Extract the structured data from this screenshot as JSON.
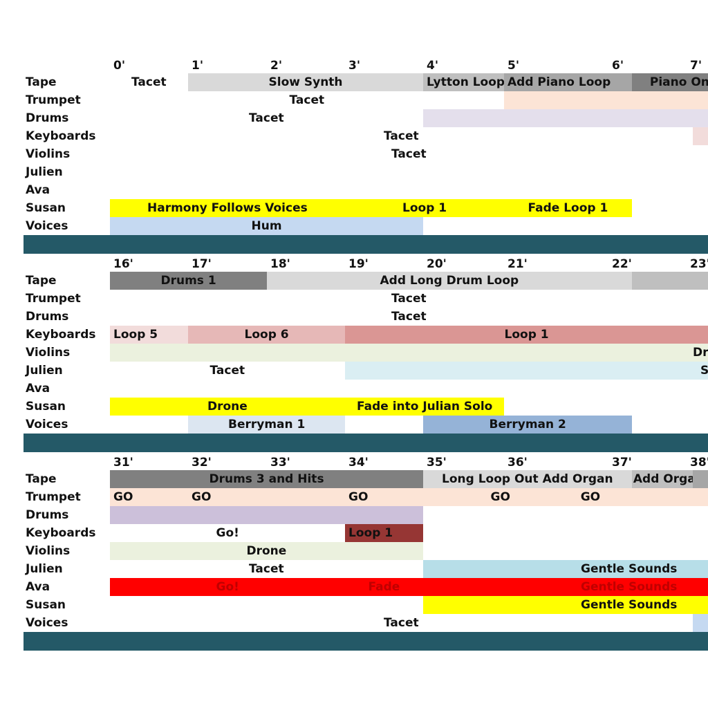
{
  "sections": [
    {
      "times": [
        "0'",
        "1'",
        "2'",
        "3'",
        "4'",
        "5'",
        "6'",
        "7'"
      ],
      "rows": [
        {
          "label": "Tape",
          "cells": [
            {
              "from": 0,
              "to": 1,
              "text": "Tacet",
              "align": "center",
              "color": "#ffffff"
            },
            {
              "from": 1,
              "to": 4,
              "text": "Slow Synth",
              "align": "center",
              "color": "#d9d9d9"
            },
            {
              "from": 4,
              "to": 5,
              "text": "Lytton Loop",
              "align": "left",
              "color": "#bfbfbf"
            },
            {
              "from": 5,
              "to": 6.3,
              "text": "Add Piano Loop",
              "align": "left",
              "color": "#a6a6a6"
            },
            {
              "from": 6.3,
              "to": 8,
              "text": "Piano On",
              "align": "right",
              "color": "#808080"
            }
          ]
        },
        {
          "label": "Trumpet",
          "cells": [
            {
              "from": 0,
              "to": 5,
              "text": "Tacet",
              "align": "center",
              "color": "#ffffff"
            },
            {
              "from": 5,
              "to": 8,
              "text": "",
              "align": "center",
              "color": "#fce4d6"
            }
          ]
        },
        {
          "label": "Drums",
          "cells": [
            {
              "from": 0,
              "to": 4,
              "text": "Tacet",
              "align": "center",
              "color": "#ffffff"
            },
            {
              "from": 4,
              "to": 8,
              "text": "",
              "align": "center",
              "color": "#e4dfec"
            }
          ]
        },
        {
          "label": "Keyboards",
          "cells": [
            {
              "from": 0,
              "to": 7.3,
              "text": "Tacet",
              "align": "center",
              "color": "#ffffff"
            },
            {
              "from": 7.3,
              "to": 8,
              "text": "",
              "align": "center",
              "color": "#f2dcdb"
            }
          ]
        },
        {
          "label": "Violins",
          "cells": [
            {
              "from": 0,
              "to": 8,
              "text": "Tacet",
              "align": "center",
              "color": "#ffffff"
            }
          ]
        },
        {
          "label": "Julien",
          "cells": []
        },
        {
          "label": "Ava",
          "cells": []
        },
        {
          "label": "Susan",
          "cells": [
            {
              "from": 0,
              "to": 3,
              "text": "Harmony Follows Voices",
              "align": "center",
              "color": "#ffff00"
            },
            {
              "from": 3,
              "to": 5,
              "text": "Loop 1",
              "align": "center",
              "color": "#ffff00"
            },
            {
              "from": 5,
              "to": 6.3,
              "text": "Fade Loop 1",
              "align": "center",
              "color": "#ffff00"
            }
          ]
        },
        {
          "label": "Voices",
          "cells": [
            {
              "from": 0,
              "to": 4,
              "text": "Hum",
              "align": "center",
              "color": "#c5d9f1"
            }
          ]
        }
      ]
    },
    {
      "times": [
        "16'",
        "17'",
        "18'",
        "19'",
        "20'",
        "21'",
        "22'",
        "23'"
      ],
      "rows": [
        {
          "label": "Tape",
          "cells": [
            {
              "from": 0,
              "to": 2,
              "text": "Drums 1",
              "align": "center",
              "color": "#808080"
            },
            {
              "from": 2,
              "to": 6.3,
              "text": "Add Long Drum Loop",
              "align": "center",
              "color": "#d9d9d9"
            },
            {
              "from": 6.3,
              "to": 8,
              "text": "",
              "align": "center",
              "color": "#bfbfbf"
            }
          ]
        },
        {
          "label": "Trumpet",
          "cells": [
            {
              "from": 0,
              "to": 8,
              "text": "Tacet",
              "align": "center",
              "color": "#ffffff"
            }
          ]
        },
        {
          "label": "Drums",
          "cells": [
            {
              "from": 0,
              "to": 8,
              "text": "Tacet",
              "align": "center",
              "color": "#ffffff"
            }
          ]
        },
        {
          "label": "Keyboards",
          "cells": [
            {
              "from": 0,
              "to": 1,
              "text": "Loop 5",
              "align": "left",
              "color": "#f2dcdb"
            },
            {
              "from": 1,
              "to": 3,
              "text": "Loop 6",
              "align": "center",
              "color": "#e6b8b7"
            },
            {
              "from": 3,
              "to": 8,
              "text": "Loop 1",
              "align": "center",
              "color": "#da9694"
            }
          ]
        },
        {
          "label": "Violins",
          "cells": [
            {
              "from": 0,
              "to": 8,
              "text": "Dr",
              "align": "right",
              "color": "#ebf1de"
            }
          ]
        },
        {
          "label": "Julien",
          "cells": [
            {
              "from": 0,
              "to": 3,
              "text": "Tacet",
              "align": "center",
              "color": "#ffffff"
            },
            {
              "from": 3,
              "to": 8,
              "text": "S",
              "align": "right",
              "color": "#daeef3"
            }
          ]
        },
        {
          "label": "Ava",
          "cells": []
        },
        {
          "label": "Susan",
          "cells": [
            {
              "from": 0,
              "to": 3,
              "text": "Drone",
              "align": "center",
              "color": "#ffff00"
            },
            {
              "from": 3,
              "to": 5,
              "text": "Fade into Julian Solo",
              "align": "center",
              "color": "#ffff00"
            }
          ]
        },
        {
          "label": "Voices",
          "cells": [
            {
              "from": 1,
              "to": 3,
              "text": "Berryman 1",
              "align": "center",
              "color": "#dce6f1"
            },
            {
              "from": 4,
              "to": 6.3,
              "text": "Berryman 2",
              "align": "center",
              "color": "#95b3d7"
            }
          ]
        }
      ]
    },
    {
      "times": [
        "31'",
        "32'",
        "33'",
        "34'",
        "35'",
        "36'",
        "37'",
        "38'"
      ],
      "rows": [
        {
          "label": "Tape",
          "cells": [
            {
              "from": 0,
              "to": 4,
              "text": "Drums 3 and Hits",
              "align": "center",
              "color": "#808080"
            },
            {
              "from": 4,
              "to": 6.3,
              "text": "Long Loop Out Add Organ",
              "align": "center",
              "color": "#d9d9d9"
            },
            {
              "from": 6.3,
              "to": 7.3,
              "text": "Add Organs",
              "align": "center",
              "color": "#bfbfbf"
            },
            {
              "from": 7.3,
              "to": 8,
              "text": "",
              "align": "center",
              "color": "#a6a6a6"
            }
          ]
        },
        {
          "label": "Trumpet",
          "cells": [
            {
              "from": 0,
              "to": 1,
              "text": "GO",
              "align": "left",
              "color": "#fce4d6"
            },
            {
              "from": 1,
              "to": 3,
              "text": "GO",
              "align": "left",
              "color": "#fce4d6"
            },
            {
              "from": 3,
              "to": 4,
              "text": "GO",
              "align": "left",
              "color": "#fce4d6"
            },
            {
              "from": 4,
              "to": 5.7,
              "text": "GO",
              "align": "center",
              "color": "#fce4d6"
            },
            {
              "from": 5.7,
              "to": 8,
              "text": "GO",
              "align": "left",
              "color": "#fce4d6"
            }
          ]
        },
        {
          "label": "Drums",
          "cells": [
            {
              "from": 0,
              "to": 4,
              "text": "",
              "align": "center",
              "color": "#ccc0da"
            }
          ]
        },
        {
          "label": "Keyboards",
          "cells": [
            {
              "from": 0,
              "to": 3,
              "text": "Go!",
              "align": "center",
              "color": "#ffffff"
            },
            {
              "from": 3,
              "to": 4,
              "text": "Loop 1",
              "align": "left",
              "color": "#963634"
            }
          ]
        },
        {
          "label": "Violins",
          "cells": [
            {
              "from": 0,
              "to": 4,
              "text": "Drone",
              "align": "center",
              "color": "#ebf1de"
            }
          ]
        },
        {
          "label": "Julien",
          "cells": [
            {
              "from": 0,
              "to": 4,
              "text": "Tacet",
              "align": "center",
              "color": "#ffffff"
            },
            {
              "from": 4,
              "to": 8,
              "text": "Gentle Sounds",
              "align": "right",
              "color": "#b7dee8"
            }
          ]
        },
        {
          "label": "Ava",
          "cells": [
            {
              "from": 0,
              "to": 3,
              "text": "Go!",
              "align": "center",
              "color": "#ff0000",
              "text_color": "#c00000"
            },
            {
              "from": 3,
              "to": 4,
              "text": "Fade",
              "align": "center",
              "color": "#ff0000",
              "text_color": "#c00000"
            },
            {
              "from": 4,
              "to": 8,
              "text": "Gentle Sounds",
              "align": "right",
              "color": "#ff0000",
              "text_color": "#c00000"
            }
          ]
        },
        {
          "label": "Susan",
          "cells": [
            {
              "from": 4,
              "to": 8,
              "text": "Gentle Sounds",
              "align": "right",
              "color": "#ffff00"
            }
          ]
        },
        {
          "label": "Voices",
          "cells": [
            {
              "from": 0,
              "to": 7.3,
              "text": "Tacet",
              "align": "center",
              "color": "#ffffff"
            },
            {
              "from": 7.3,
              "to": 8,
              "text": "",
              "align": "center",
              "color": "#c5d9f1"
            }
          ]
        }
      ]
    }
  ]
}
